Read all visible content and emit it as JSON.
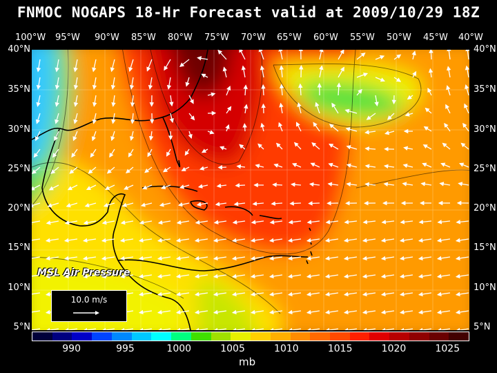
{
  "title": "FNMOC NOGAPS 18-Hr Forecast valid at 2009/10/29 18Z",
  "longitude_labels": [
    "100°W",
    "95°W",
    "90°W",
    "85°W",
    "80°W",
    "75°W",
    "70°W",
    "65°W",
    "60°W",
    "55°W",
    "50°W",
    "45°W",
    "40°W"
  ],
  "latitude_labels": [
    "40°N",
    "35°N",
    "30°N",
    "25°N",
    "20°N",
    "15°N",
    "10°N",
    "5°N"
  ],
  "overlay_label": "MSL Air Pressure",
  "wind_reference": {
    "label": "10.0 m/s",
    "icon": "arrow-right-icon"
  },
  "colorbar": {
    "units": "mb",
    "tick_labels": [
      "990",
      "995",
      "1000",
      "1005",
      "1010",
      "1015",
      "1020",
      "1025"
    ],
    "colors": [
      "#00003a",
      "#000080",
      "#0000c8",
      "#0044ff",
      "#0088ff",
      "#00c8ff",
      "#00ffff",
      "#00ff80",
      "#40e000",
      "#a0e000",
      "#e8f000",
      "#ffd000",
      "#ffb000",
      "#ff8c00",
      "#ff6a00",
      "#ff4a00",
      "#ff2000",
      "#e00000",
      "#b80000",
      "#900000",
      "#6a0000",
      "#420000"
    ]
  },
  "pressure_field": {
    "extent": {
      "lon": [
        -100,
        -40
      ],
      "lat": [
        5,
        40
      ]
    },
    "centers": [
      {
        "type": "high",
        "lon": -78,
        "lat": 38,
        "value_mb": 1024
      },
      {
        "type": "high",
        "lon": -70,
        "lat": 22,
        "value_mb": 1018
      },
      {
        "type": "low",
        "lon": -98,
        "lat": 35,
        "value_mb": 1001
      },
      {
        "type": "low",
        "lon": -57,
        "lat": 35,
        "value_mb": 1004
      },
      {
        "type": "low",
        "lon": -85,
        "lat": 10,
        "value_mb": 1008
      }
    ]
  },
  "colors": {
    "background": "#000000",
    "text": "#ffffff",
    "coastline": "#000000",
    "wind_vectors": "#ffffff",
    "grid": "#ffffff"
  }
}
